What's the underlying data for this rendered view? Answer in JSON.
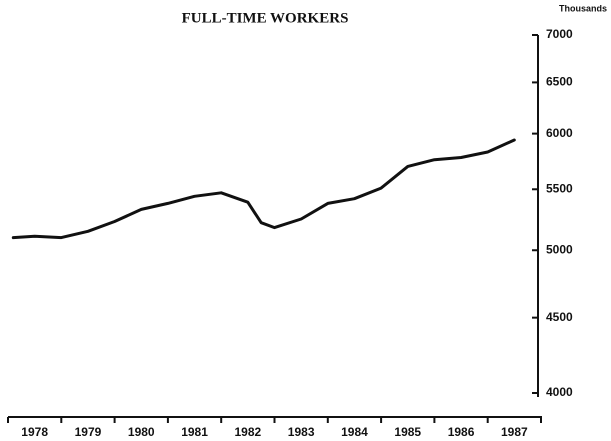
{
  "chart_data": {
    "type": "line",
    "title": "FULL-TIME WORKERS",
    "y_axis_label": "Thousands",
    "categories": [
      "1978",
      "1979",
      "1980",
      "1981",
      "1982",
      "1983",
      "1984",
      "1985",
      "1986",
      "1987"
    ],
    "xlim": [
      1978,
      1988
    ],
    "x": [
      1978.1,
      1978.5,
      1979.0,
      1979.5,
      1980.0,
      1980.5,
      1981.0,
      1981.5,
      1982.0,
      1982.5,
      1982.75,
      1983.0,
      1983.5,
      1984.0,
      1984.5,
      1985.0,
      1985.5,
      1986.0,
      1986.5,
      1987.0,
      1987.5
    ],
    "series": [
      {
        "name": "Full-time workers",
        "color": "#111111",
        "values": [
          5100,
          5110,
          5100,
          5150,
          5230,
          5330,
          5380,
          5440,
          5470,
          5390,
          5220,
          5180,
          5250,
          5380,
          5420,
          5510,
          5700,
          5760,
          5780,
          5830,
          5940
        ]
      }
    ],
    "ylim": [
      4000,
      7000
    ],
    "yticks": [
      4000,
      4500,
      5000,
      5500,
      6000,
      6500,
      7000
    ],
    "log_y": true,
    "grid": false
  }
}
